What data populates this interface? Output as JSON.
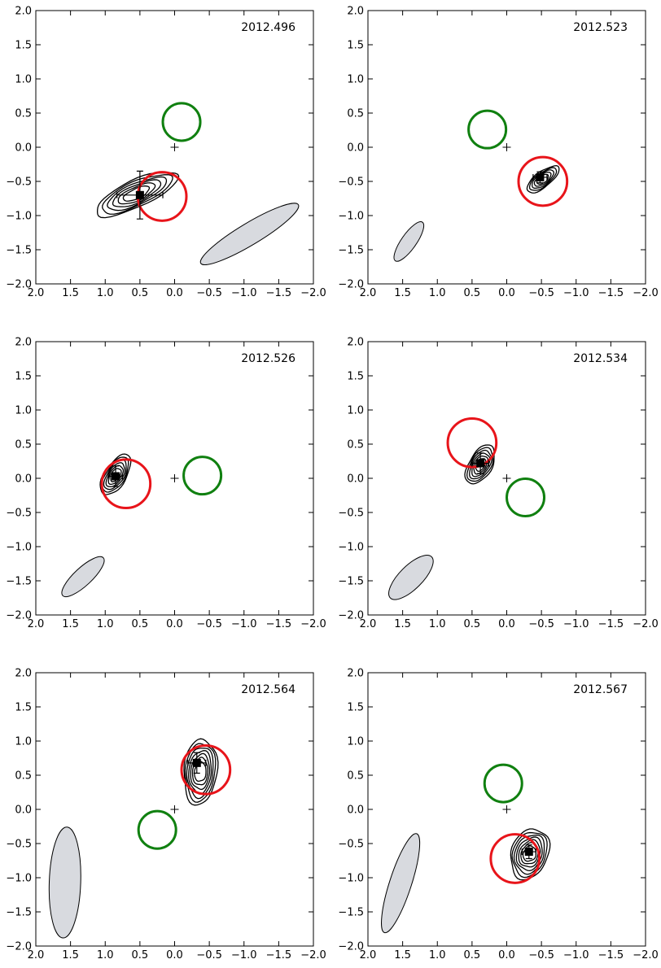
{
  "chart_data": [
    {
      "type": "scatter",
      "title": "2012.496",
      "xlim": [
        2.0,
        -2.0
      ],
      "ylim": [
        -2.0,
        2.0
      ],
      "xticks": [
        "2.0",
        "1.5",
        "1.0",
        "0.5",
        "0.0",
        "−0.5",
        "−1.0",
        "−1.5",
        "−2.0"
      ],
      "yticks": [
        "−2.0",
        "−1.5",
        "−1.0",
        "−0.5",
        "0.0",
        "0.5",
        "1.0",
        "1.5",
        "2.0"
      ],
      "origin_marker": [
        0.0,
        0.0
      ],
      "measured_point": {
        "x": 0.5,
        "y": -0.7,
        "xerr": 0.33,
        "yerr": 0.35
      },
      "red_circle": {
        "x": 0.18,
        "y": -0.72,
        "r": 0.35
      },
      "green_circle": {
        "x": -0.1,
        "y": 0.37,
        "r": 0.27
      },
      "beam": {
        "x": -1.08,
        "y": -1.27,
        "rx": 0.82,
        "ry": 0.16,
        "angle_deg": -31
      },
      "contours": {
        "x": 0.55,
        "y": -0.68,
        "rx": 1.28,
        "ry": 0.36,
        "angle_deg": -25,
        "levels": 6
      }
    },
    {
      "type": "scatter",
      "title": "2012.523",
      "xlim": [
        2.0,
        -2.0
      ],
      "ylim": [
        -2.0,
        2.0
      ],
      "xticks": [
        "2.0",
        "1.5",
        "1.0",
        "0.5",
        "0.0",
        "−0.5",
        "−1.0",
        "−1.5",
        "−2.0"
      ],
      "yticks": [
        "−2.0",
        "−1.5",
        "−1.0",
        "−0.5",
        "0.0",
        "0.5",
        "1.0",
        "1.5",
        "2.0"
      ],
      "origin_marker": [
        0.0,
        0.0
      ],
      "measured_point": {
        "x": -0.48,
        "y": -0.44,
        "xerr": 0.1,
        "yerr": 0.08
      },
      "red_circle": {
        "x": -0.52,
        "y": -0.5,
        "r": 0.35
      },
      "green_circle": {
        "x": 0.28,
        "y": 0.26,
        "r": 0.27
      },
      "beam": {
        "x": 1.41,
        "y": -1.38,
        "rx": 0.34,
        "ry": 0.11,
        "angle_deg": -55
      },
      "contours": {
        "x": -0.52,
        "y": -0.47,
        "rx": 0.56,
        "ry": 0.19,
        "angle_deg": -38,
        "levels": 5
      }
    },
    {
      "type": "scatter",
      "title": "2012.526",
      "xlim": [
        2.0,
        -2.0
      ],
      "ylim": [
        -2.0,
        2.0
      ],
      "xticks": [
        "2.0",
        "1.5",
        "1.0",
        "0.5",
        "0.0",
        "−0.5",
        "−1.0",
        "−1.5",
        "−2.0"
      ],
      "yticks": [
        "−2.0",
        "−1.5",
        "−1.0",
        "−0.5",
        "0.0",
        "0.5",
        "1.0",
        "1.5",
        "2.0"
      ],
      "origin_marker": [
        0.0,
        0.0
      ],
      "measured_point": {
        "x": 0.85,
        "y": 0.03,
        "xerr": 0.1,
        "yerr": 0.15
      },
      "red_circle": {
        "x": 0.7,
        "y": -0.08,
        "r": 0.35
      },
      "green_circle": {
        "x": -0.4,
        "y": 0.04,
        "r": 0.27
      },
      "beam": {
        "x": 1.32,
        "y": -1.44,
        "rx": 0.4,
        "ry": 0.13,
        "angle_deg": -43
      },
      "contours": {
        "x": 0.85,
        "y": 0.05,
        "rx": 0.66,
        "ry": 0.28,
        "angle_deg": -58,
        "levels": 6
      }
    },
    {
      "type": "scatter",
      "title": "2012.534",
      "xlim": [
        2.0,
        -2.0
      ],
      "ylim": [
        -2.0,
        2.0
      ],
      "xticks": [
        "2.0",
        "1.5",
        "1.0",
        "0.5",
        "0.0",
        "−0.5",
        "−1.0",
        "−1.5",
        "−2.0"
      ],
      "yticks": [
        "−2.0",
        "−1.5",
        "−1.0",
        "−0.5",
        "0.0",
        "0.5",
        "1.0",
        "1.5",
        "2.0"
      ],
      "origin_marker": [
        0.0,
        0.0
      ],
      "measured_point": {
        "x": 0.38,
        "y": 0.22,
        "xerr": 0.12,
        "yerr": 0.15
      },
      "red_circle": {
        "x": 0.5,
        "y": 0.52,
        "r": 0.35
      },
      "green_circle": {
        "x": -0.27,
        "y": -0.28,
        "r": 0.27
      },
      "beam": {
        "x": 1.38,
        "y": -1.45,
        "rx": 0.42,
        "ry": 0.17,
        "angle_deg": -45
      },
      "contours": {
        "x": 0.38,
        "y": 0.2,
        "rx": 0.62,
        "ry": 0.3,
        "angle_deg": -60,
        "levels": 6
      }
    },
    {
      "type": "scatter",
      "title": "2012.564",
      "xlim": [
        2.0,
        -2.0
      ],
      "ylim": [
        -2.0,
        2.0
      ],
      "xticks": [
        "2.0",
        "1.5",
        "1.0",
        "0.5",
        "0.0",
        "−0.5",
        "−1.0",
        "−1.5",
        "−2.0"
      ],
      "yticks": [
        "−2.0",
        "−1.5",
        "−1.0",
        "−0.5",
        "0.0",
        "0.5",
        "1.0",
        "1.5",
        "2.0"
      ],
      "origin_marker": [
        0.0,
        0.0
      ],
      "measured_point": {
        "x": -0.32,
        "y": 0.68,
        "xerr": 0.13,
        "yerr": 0.15
      },
      "red_circle": {
        "x": -0.45,
        "y": 0.58,
        "r": 0.35
      },
      "green_circle": {
        "x": 0.25,
        "y": -0.3,
        "r": 0.27
      },
      "beam": {
        "x": 1.58,
        "y": -1.07,
        "rx": 0.8,
        "ry": 0.23,
        "angle_deg": -88
      },
      "contours": {
        "x": -0.37,
        "y": 0.55,
        "rx": 0.95,
        "ry": 0.45,
        "angle_deg": -85,
        "levels": 7
      }
    },
    {
      "type": "scatter",
      "title": "2012.567",
      "xlim": [
        2.0,
        -2.0
      ],
      "ylim": [
        -2.0,
        2.0
      ],
      "xticks": [
        "2.0",
        "1.5",
        "1.0",
        "0.5",
        "0.0",
        "−0.5",
        "−1.0",
        "−1.5",
        "−2.0"
      ],
      "yticks": [
        "−2.0",
        "−1.5",
        "−1.0",
        "−0.5",
        "0.0",
        "0.5",
        "1.0",
        "1.5",
        "2.0"
      ],
      "origin_marker": [
        0.0,
        0.0
      ],
      "measured_point": {
        "x": -0.32,
        "y": -0.62,
        "xerr": 0.1,
        "yerr": 0.1
      },
      "red_circle": {
        "x": -0.12,
        "y": -0.72,
        "r": 0.35
      },
      "green_circle": {
        "x": 0.05,
        "y": 0.38,
        "r": 0.27
      },
      "beam": {
        "x": 1.53,
        "y": -1.08,
        "rx": 0.75,
        "ry": 0.16,
        "angle_deg": -72
      },
      "contours": {
        "x": -0.33,
        "y": -0.65,
        "rx": 0.75,
        "ry": 0.5,
        "angle_deg": -70,
        "levels": 7
      }
    }
  ],
  "colors": {
    "red_circle": "#e8141a",
    "green_circle": "#108010",
    "beam_fill": "#d8dadf",
    "contour": "#000000",
    "axes": "#000000"
  }
}
